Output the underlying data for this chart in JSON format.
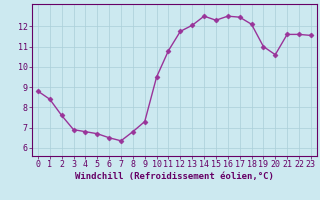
{
  "x": [
    0,
    1,
    2,
    3,
    4,
    5,
    6,
    7,
    8,
    9,
    10,
    11,
    12,
    13,
    14,
    15,
    16,
    17,
    18,
    19,
    20,
    21,
    22,
    23
  ],
  "y": [
    8.8,
    8.4,
    7.6,
    6.9,
    6.8,
    6.7,
    6.5,
    6.35,
    6.8,
    7.3,
    9.5,
    10.8,
    11.75,
    12.05,
    12.5,
    12.3,
    12.5,
    12.45,
    12.1,
    11.0,
    10.6,
    11.6,
    11.6,
    11.55
  ],
  "line_color": "#993399",
  "marker": "D",
  "marker_size": 2.5,
  "bg_color": "#cce9f0",
  "grid_color": "#aacfd8",
  "axis_color": "#660066",
  "xlabel": "Windchill (Refroidissement éolien,°C)",
  "ylim": [
    5.6,
    13.1
  ],
  "xlim": [
    -0.5,
    23.5
  ],
  "yticks": [
    6,
    7,
    8,
    9,
    10,
    11,
    12
  ],
  "xticks": [
    0,
    1,
    2,
    3,
    4,
    5,
    6,
    7,
    8,
    9,
    10,
    11,
    12,
    13,
    14,
    15,
    16,
    17,
    18,
    19,
    20,
    21,
    22,
    23
  ],
  "xlabel_fontsize": 6.5,
  "tick_fontsize": 6.0,
  "line_width": 1.0
}
